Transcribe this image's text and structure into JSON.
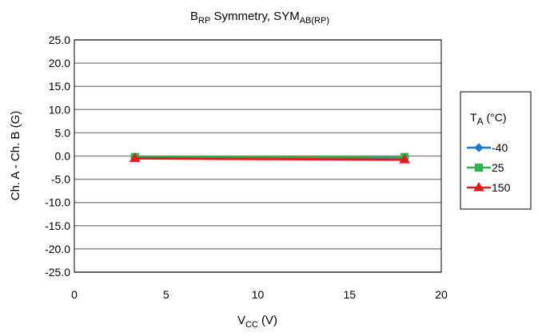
{
  "chart_data": {
    "type": "line",
    "title": {
      "main": "B",
      "main_sub": "RP",
      "middle": " Symmetry, SYM",
      "end_sub": "AB(RP)"
    },
    "xlabel": {
      "main": "V",
      "sub": "CC",
      "suffix": " (V)"
    },
    "ylabel": "Ch. A - Ch. B (G)",
    "xlim": [
      0,
      20
    ],
    "ylim": [
      -25,
      25
    ],
    "xticks": [
      "0",
      "5",
      "10",
      "15",
      "20"
    ],
    "yticks": [
      "25.0",
      "20.0",
      "15.0",
      "10.0",
      "5.0",
      "0.0",
      "-5.0",
      "-10.0",
      "-15.0",
      "-20.0",
      "-25.0"
    ],
    "grid": true,
    "legend": {
      "placement": "right",
      "title_main": "T",
      "title_sub": "A",
      "title_suffix": " (°C)"
    },
    "series": [
      {
        "name": "-40",
        "color": "#1f77d4",
        "marker": "diamond",
        "x": [
          3.3,
          18
        ],
        "y": [
          -0.2,
          -0.3
        ]
      },
      {
        "name": "25",
        "color": "#2db34a",
        "marker": "square",
        "x": [
          3.3,
          18
        ],
        "y": [
          -0.2,
          -0.2
        ]
      },
      {
        "name": "150",
        "color": "#e41a1c",
        "marker": "triangle",
        "x": [
          3.3,
          18
        ],
        "y": [
          -0.5,
          -0.8
        ]
      }
    ]
  }
}
